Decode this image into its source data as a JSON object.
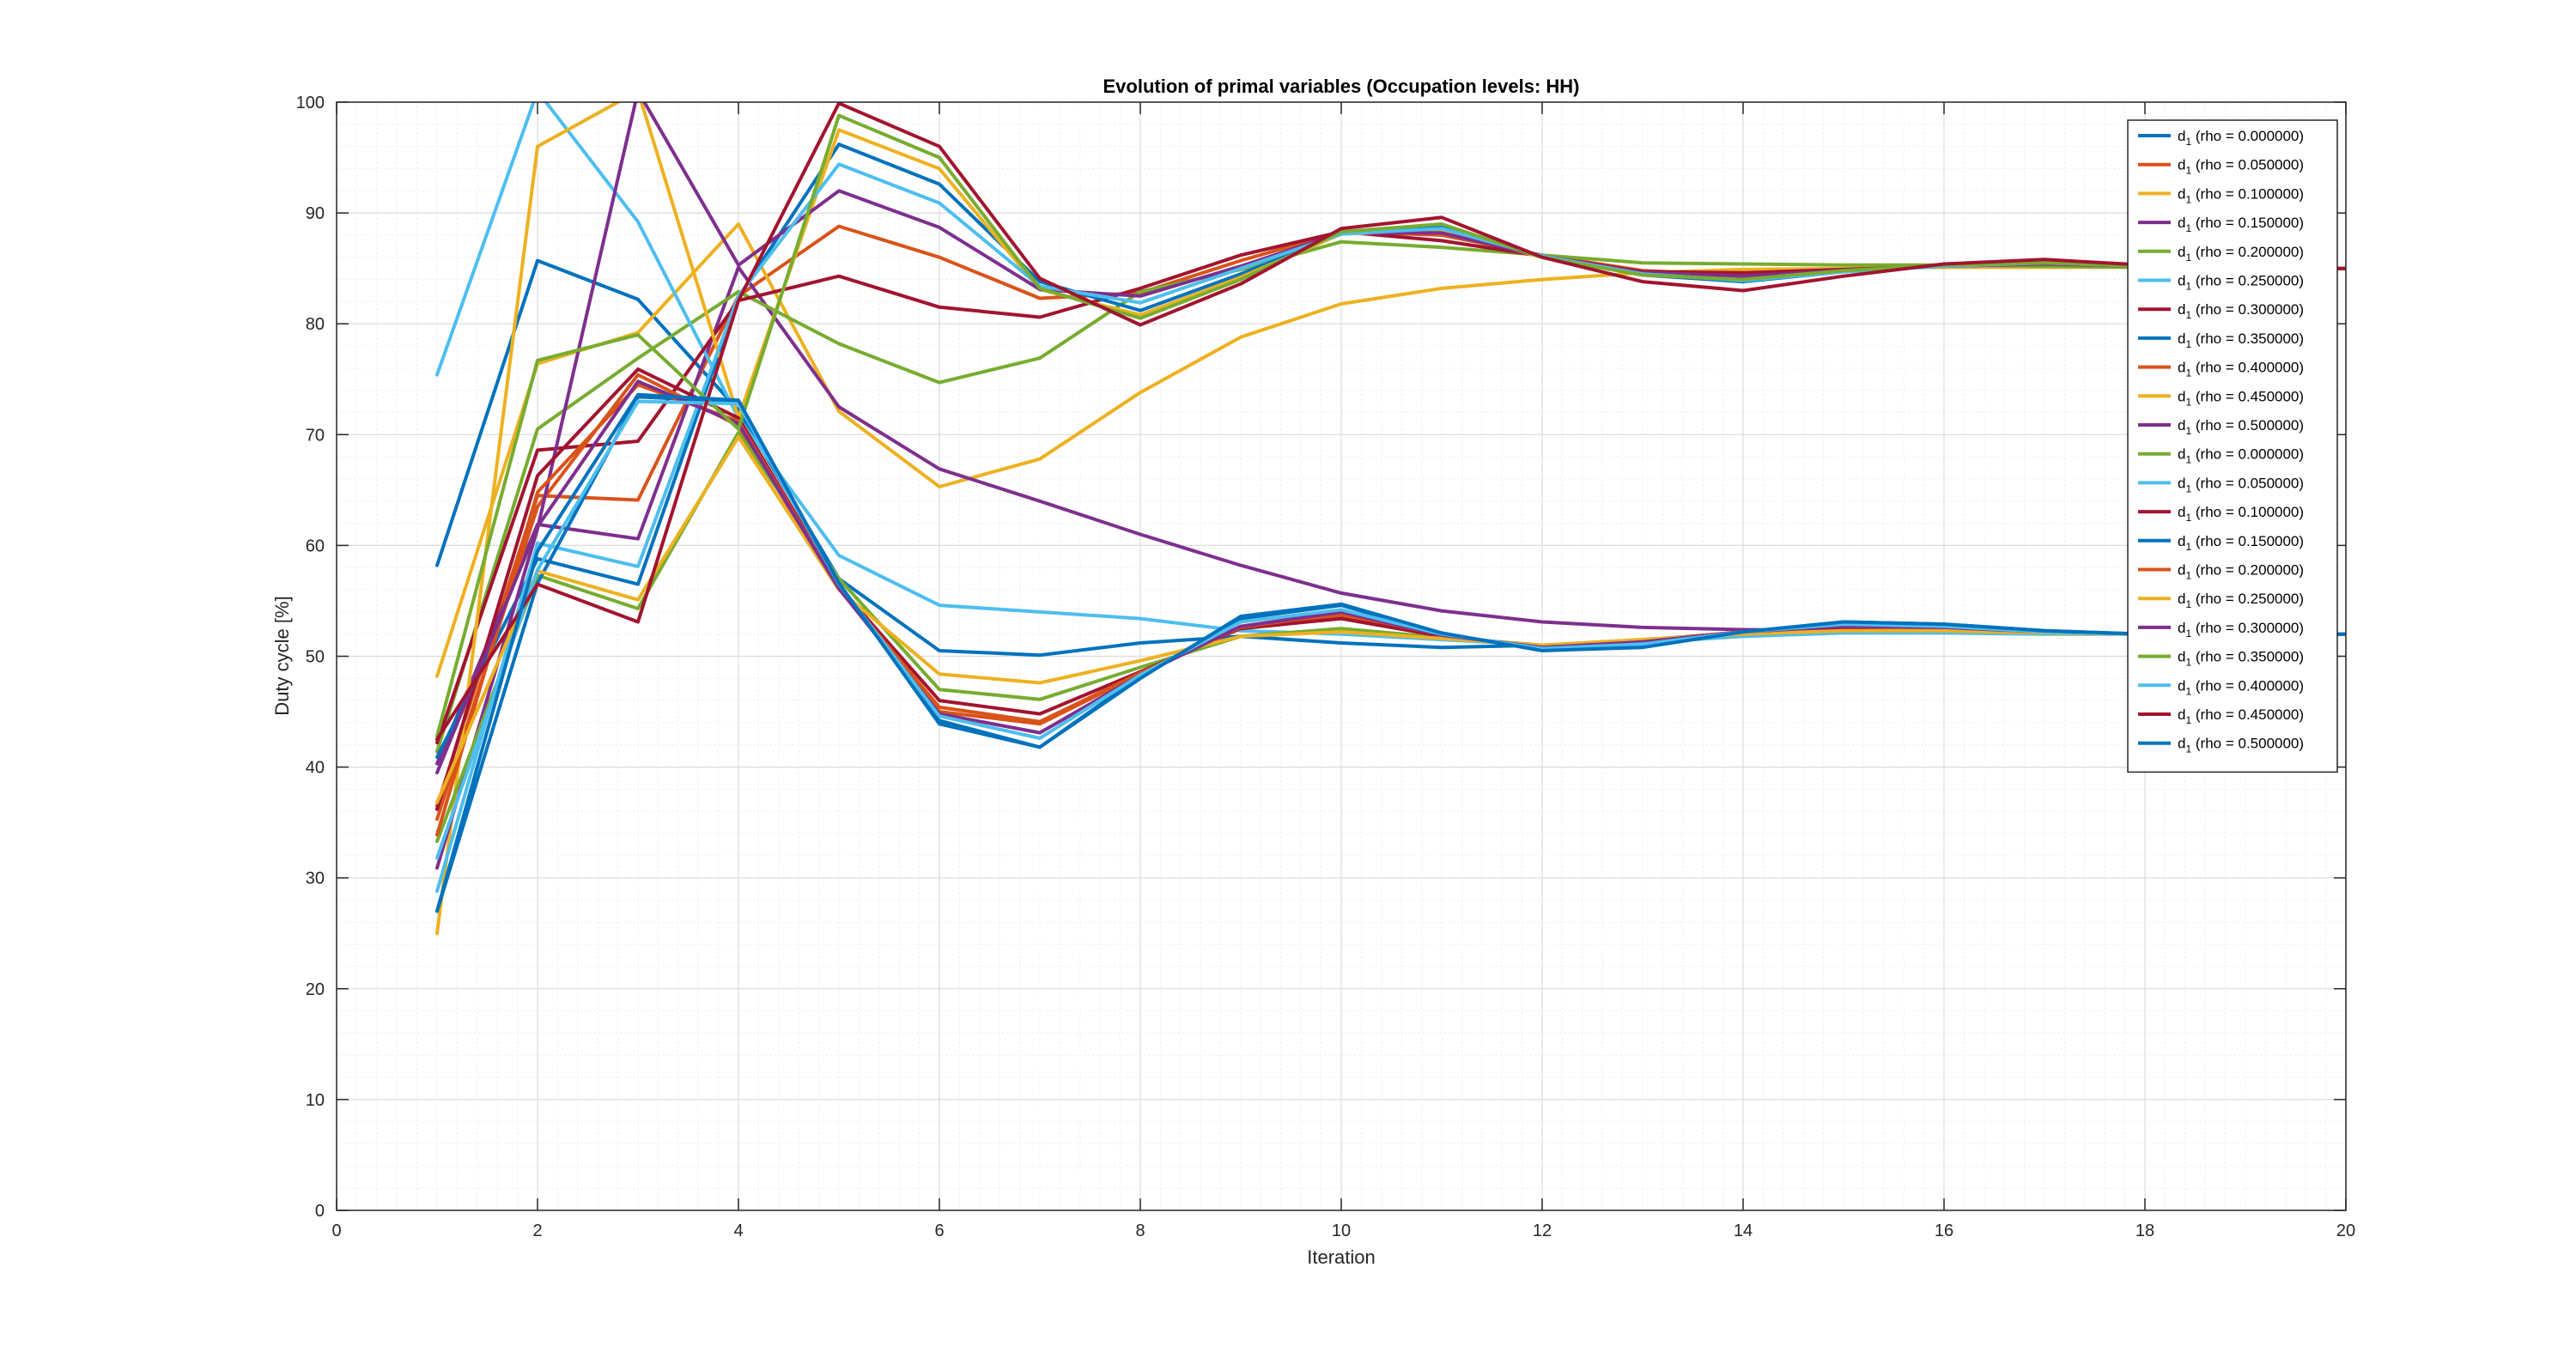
{
  "chart_data": {
    "type": "line",
    "title": "Evolution of primal variables (Occupation levels: HH)",
    "xlabel": "Iteration",
    "ylabel": "Duty cycle [%]",
    "xlim": [
      0,
      20
    ],
    "ylim": [
      0,
      100
    ],
    "xticks": [
      "0",
      "2",
      "4",
      "6",
      "8",
      "10",
      "12",
      "14",
      "16",
      "18",
      "20"
    ],
    "yticks": [
      "0",
      "10",
      "20",
      "30",
      "40",
      "50",
      "60",
      "70",
      "80",
      "90",
      "100"
    ],
    "grid": "on (major and minor)",
    "legend_position": "top-right",
    "x": [
      1,
      2,
      3,
      4,
      5,
      6,
      7,
      8,
      9,
      10,
      11,
      12,
      13,
      14,
      15,
      16,
      17,
      18,
      19,
      20
    ],
    "series": [
      {
        "name": "d1 (rho = 0.000000)",
        "color": "#0072BD",
        "values": [
          58.2,
          85.7,
          82.2,
          72.2,
          57.0,
          50.5,
          50.1,
          51.2,
          51.8,
          51.2,
          50.8,
          51.0,
          51.2,
          51.9,
          52.2,
          52.2,
          52.1,
          52.0,
          52.0,
          52.0
        ]
      },
      {
        "name": "d1 (rho = 0.050000)",
        "color": "#D95319",
        "values": [
          36.5,
          64.5,
          64.1,
          82.5,
          88.8,
          86.0,
          82.3,
          82.8,
          85.7,
          88.3,
          88.0,
          86.2,
          84.8,
          84.4,
          84.9,
          85.2,
          85.5,
          85.3,
          85.0,
          85.0
        ]
      },
      {
        "name": "d1 (rho = 0.100000)",
        "color": "#EDB120",
        "values": [
          48.2,
          76.4,
          79.2,
          89.0,
          72.1,
          65.3,
          67.8,
          73.8,
          78.8,
          81.8,
          83.2,
          84.0,
          84.6,
          84.9,
          85.0,
          85.1,
          85.1,
          85.1,
          85.0,
          85.0
        ]
      },
      {
        "name": "d1 (rho = 0.150000)",
        "color": "#7E2F8E",
        "values": [
          40.3,
          61.9,
          60.6,
          85.1,
          72.5,
          66.9,
          64.0,
          61.0,
          58.2,
          55.7,
          54.1,
          53.1,
          52.6,
          52.4,
          52.3,
          52.2,
          52.1,
          52.0,
          52.0,
          52.0
        ]
      },
      {
        "name": "d1 (rho = 0.200000)",
        "color": "#77AC30",
        "values": [
          41.4,
          70.5,
          76.9,
          82.9,
          78.2,
          74.7,
          76.9,
          82.9,
          84.9,
          87.4,
          86.9,
          86.2,
          85.5,
          85.4,
          85.3,
          85.3,
          85.2,
          85.1,
          85.0,
          85.0
        ]
      },
      {
        "name": "d1 (rho = 0.250000)",
        "color": "#4DBEEE",
        "values": [
          75.4,
          101.0,
          89.2,
          71.5,
          59.1,
          54.6,
          54.0,
          53.4,
          52.3,
          52.0,
          51.5,
          51.0,
          51.2,
          51.8,
          52.1,
          52.1,
          52.0,
          52.0,
          52.0,
          52.0
        ]
      },
      {
        "name": "d1 (rho = 0.300000)",
        "color": "#A2142F",
        "values": [
          42.2,
          68.6,
          69.4,
          82.1,
          84.3,
          81.5,
          80.6,
          83.2,
          86.2,
          88.3,
          87.5,
          86.1,
          84.7,
          84.6,
          84.9,
          85.2,
          85.4,
          85.3,
          85.0,
          85.0
        ]
      },
      {
        "name": "d1 (rho = 0.350000)",
        "color": "#0072BD",
        "values": [
          40.9,
          58.8,
          56.5,
          82.4,
          96.2,
          92.6,
          83.8,
          81.2,
          84.5,
          88.1,
          88.7,
          86.1,
          84.4,
          83.8,
          84.7,
          85.3,
          85.5,
          85.2,
          85.0,
          85.0
        ]
      },
      {
        "name": "d1 (rho = 0.400000)",
        "color": "#D95319",
        "values": [
          35.3,
          63.5,
          75.4,
          70.8,
          56.1,
          45.0,
          43.9,
          48.4,
          52.6,
          53.7,
          51.8,
          50.9,
          51.4,
          52.2,
          52.7,
          52.5,
          52.2,
          52.0,
          52.0,
          52.0
        ]
      },
      {
        "name": "d1 (rho = 0.450000)",
        "color": "#EDB120",
        "values": [
          25.0,
          96.0,
          101.0,
          71.5,
          97.5,
          94.0,
          83.1,
          80.8,
          84.2,
          88.1,
          88.4,
          86.0,
          84.5,
          84.1,
          84.8,
          85.2,
          85.4,
          85.2,
          85.0,
          85.0
        ]
      },
      {
        "name": "d1 (rho = 0.500000)",
        "color": "#7E2F8E",
        "values": [
          30.9,
          61.5,
          101.0,
          85.3,
          92.0,
          88.7,
          83.1,
          82.5,
          85.2,
          88.2,
          88.2,
          86.1,
          84.6,
          84.3,
          84.8,
          85.2,
          85.4,
          85.2,
          85.0,
          85.0
        ]
      },
      {
        "name": "d1 (rho = 0.000000)",
        "color": "#77AC30",
        "values": [
          33.3,
          57.3,
          54.3,
          70.2,
          57.0,
          47.0,
          46.1,
          49.0,
          51.8,
          52.5,
          51.7,
          51.0,
          51.5,
          52.1,
          52.5,
          52.4,
          52.2,
          52.0,
          52.0,
          52.0
        ]
      },
      {
        "name": "d1 (rho = 0.050000)",
        "color": "#4DBEEE",
        "values": [
          28.8,
          60.2,
          58.1,
          82.5,
          94.4,
          90.9,
          83.4,
          81.9,
          85.0,
          88.1,
          88.6,
          86.1,
          84.5,
          83.9,
          84.7,
          85.2,
          85.5,
          85.2,
          85.0,
          85.0
        ]
      },
      {
        "name": "d1 (rho = 0.100000)",
        "color": "#A2142F",
        "values": [
          36.2,
          66.3,
          75.9,
          71.5,
          56.3,
          46.0,
          44.8,
          48.6,
          52.5,
          53.4,
          51.8,
          50.9,
          51.4,
          52.2,
          52.6,
          52.5,
          52.2,
          52.0,
          52.0,
          52.0
        ]
      },
      {
        "name": "d1 (rho = 0.150000)",
        "color": "#0072BD",
        "values": [
          27.0,
          56.6,
          73.4,
          73.0,
          56.4,
          44.2,
          41.8,
          48.2,
          53.4,
          54.6,
          52.0,
          50.6,
          50.9,
          52.2,
          53.1,
          52.9,
          52.3,
          52.0,
          52.0,
          52.0
        ]
      },
      {
        "name": "d1 (rho = 0.200000)",
        "color": "#D95319",
        "values": [
          33.9,
          64.8,
          74.5,
          71.2,
          56.2,
          45.4,
          44.1,
          48.5,
          52.6,
          53.9,
          51.9,
          50.8,
          51.4,
          52.2,
          52.7,
          52.5,
          52.2,
          52.0,
          52.0,
          52.0
        ]
      },
      {
        "name": "d1 (rho = 0.250000)",
        "color": "#EDB120",
        "values": [
          36.8,
          57.7,
          55.1,
          69.8,
          56.0,
          48.4,
          47.6,
          49.6,
          51.8,
          52.2,
          51.6,
          51.0,
          51.5,
          52.0,
          52.3,
          52.3,
          52.1,
          52.0,
          52.0,
          52.0
        ]
      },
      {
        "name": "d1 (rho = 0.300000)",
        "color": "#7E2F8E",
        "values": [
          39.5,
          61.7,
          74.8,
          71.0,
          56.1,
          44.8,
          43.1,
          48.3,
          52.7,
          54.0,
          51.9,
          50.8,
          51.3,
          52.2,
          52.7,
          52.6,
          52.2,
          52.0,
          52.0,
          52.0
        ]
      },
      {
        "name": "d1 (rho = 0.350000)",
        "color": "#77AC30",
        "values": [
          42.8,
          76.7,
          79.0,
          70.5,
          98.8,
          95.0,
          83.2,
          80.5,
          84.0,
          88.3,
          89.0,
          86.0,
          84.4,
          84.0,
          84.8,
          85.3,
          85.5,
          85.2,
          85.0,
          85.0
        ]
      },
      {
        "name": "d1 (rho = 0.400000)",
        "color": "#4DBEEE",
        "values": [
          31.8,
          57.8,
          73.0,
          72.8,
          56.5,
          44.6,
          42.6,
          48.3,
          53.1,
          54.2,
          52.0,
          50.7,
          51.1,
          52.2,
          52.9,
          52.7,
          52.2,
          52.0,
          52.0,
          52.0
        ]
      },
      {
        "name": "d1 (rho = 0.450000)",
        "color": "#A2142F",
        "values": [
          42.5,
          56.5,
          53.1,
          82.1,
          99.9,
          96.0,
          84.1,
          79.9,
          83.6,
          88.6,
          89.6,
          86.0,
          83.8,
          83.0,
          84.3,
          85.4,
          85.8,
          85.3,
          85.0,
          85.0
        ]
      },
      {
        "name": "d1 (rho = 0.500000)",
        "color": "#0072BD",
        "values": [
          27.0,
          59.5,
          73.6,
          73.1,
          56.6,
          43.9,
          41.8,
          48.0,
          53.6,
          54.7,
          52.1,
          50.5,
          50.8,
          52.2,
          53.1,
          52.9,
          52.3,
          52.0,
          52.0,
          52.0
        ]
      }
    ]
  }
}
